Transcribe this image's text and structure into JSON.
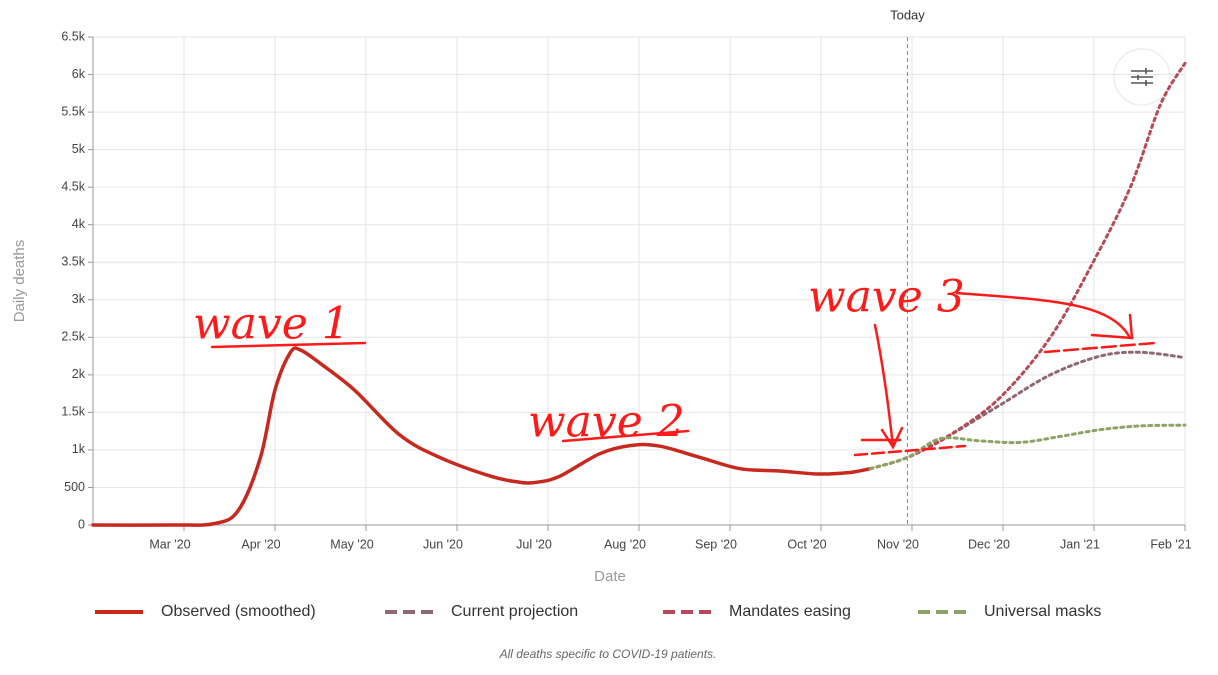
{
  "chart_data": {
    "type": "line",
    "x_label": "Date",
    "y_label": "Daily deaths",
    "note": "All deaths specific to COVID-19 patients.",
    "xlim": [
      0,
      12
    ],
    "xticks": [
      {
        "value": 1,
        "label": "Mar '20"
      },
      {
        "value": 2,
        "label": "Apr '20"
      },
      {
        "value": 3,
        "label": "May '20"
      },
      {
        "value": 4,
        "label": "Jun '20"
      },
      {
        "value": 5,
        "label": "Jul '20"
      },
      {
        "value": 6,
        "label": "Aug '20"
      },
      {
        "value": 7,
        "label": "Sep '20"
      },
      {
        "value": 8,
        "label": "Oct '20"
      },
      {
        "value": 9,
        "label": "Nov '20"
      },
      {
        "value": 10,
        "label": "Dec '20"
      },
      {
        "value": 11,
        "label": "Jan '21"
      },
      {
        "value": 12,
        "label": "Feb '21"
      }
    ],
    "ylim": [
      0,
      6500
    ],
    "yticks": [
      0,
      500,
      {
        "value": 1000,
        "label": "1k"
      },
      {
        "value": 1500,
        "label": "1.5k"
      },
      {
        "value": 2000,
        "label": "2k"
      },
      {
        "value": 2500,
        "label": "2.5k"
      },
      {
        "value": 3000,
        "label": "3k"
      },
      {
        "value": 3500,
        "label": "3.5k"
      },
      {
        "value": 4000,
        "label": "4k"
      },
      {
        "value": 4500,
        "label": "4.5k"
      },
      {
        "value": 5000,
        "label": "5k"
      },
      {
        "value": 5500,
        "label": "5.5k"
      },
      {
        "value": 6000,
        "label": "6k"
      },
      {
        "value": 6500,
        "label": "6.5k"
      }
    ],
    "grid": true,
    "legend": "bottom",
    "series": [
      {
        "name": "Observed (smoothed)",
        "color": "#c8281e",
        "line_style": "solid",
        "x": [
          0,
          0.88,
          1.34,
          1.6,
          1.84,
          2.0,
          2.17,
          2.28,
          2.5,
          2.87,
          3.37,
          3.81,
          4.37,
          4.69,
          4.88,
          5.13,
          5.57,
          5.92,
          6.23,
          6.67,
          7.11,
          7.55,
          7.96,
          8.32,
          8.54
        ],
        "values": [
          0,
          0,
          20,
          200,
          900,
          1800,
          2300,
          2330,
          2150,
          1800,
          1200,
          900,
          650,
          570,
          570,
          650,
          950,
          1060,
          1050,
          900,
          750,
          720,
          680,
          700,
          750
        ]
      },
      {
        "name": "Current projection",
        "color": "#8e6872",
        "line_style": "dotted",
        "x": [
          8.54,
          8.95,
          9.42,
          9.97,
          10.52,
          11.07,
          11.51,
          12
        ],
        "values": [
          750,
          900,
          1200,
          1600,
          2000,
          2250,
          2300,
          2230
        ]
      },
      {
        "name": "Mandates easing",
        "color": "#b64a58",
        "line_style": "dotted",
        "x": [
          8.54,
          8.95,
          9.42,
          9.97,
          10.52,
          10.99,
          11.4,
          11.73,
          12
        ],
        "values": [
          750,
          900,
          1200,
          1700,
          2500,
          3500,
          4500,
          5600,
          6150
        ]
      },
      {
        "name": "Universal masks",
        "color": "#8fa265",
        "line_style": "dotted",
        "x": [
          8.54,
          8.95,
          9.31,
          9.75,
          10.19,
          10.63,
          11.07,
          11.51,
          12
        ],
        "values": [
          750,
          900,
          1150,
          1120,
          1100,
          1180,
          1270,
          1320,
          1330
        ]
      }
    ],
    "annotations": [
      {
        "text": "Today",
        "x": 8.95
      },
      {
        "text": "wave 1"
      },
      {
        "text": "wave 2"
      },
      {
        "text": "wave 3"
      }
    ]
  }
}
